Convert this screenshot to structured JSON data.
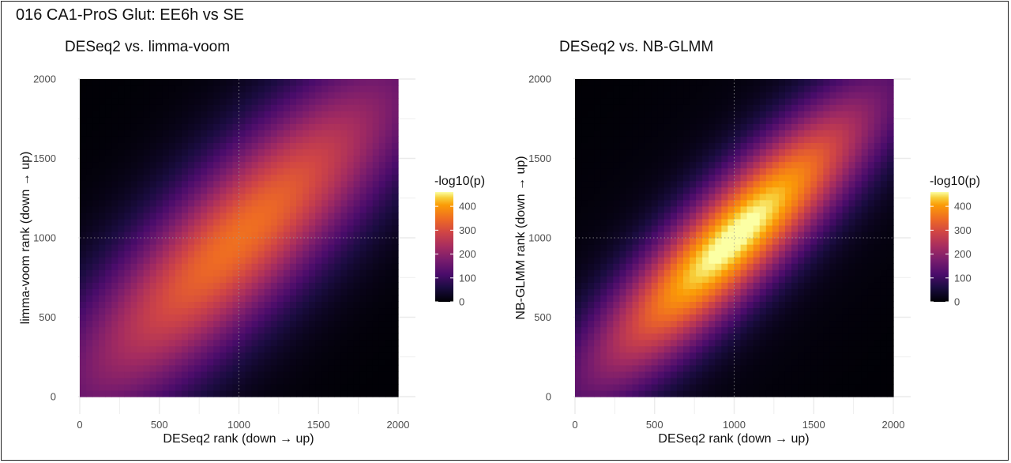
{
  "figure": {
    "title": "016 CA1-ProS Glut: EE6h vs SE"
  },
  "chart_data": [
    {
      "type": "heatmap",
      "title": "DESeq2 vs. limma-voom",
      "xlabel": "DESeq2 rank (down → up)",
      "ylabel": "limma-voom rank (down → up)",
      "xlim": [
        0,
        2000
      ],
      "ylim": [
        0,
        2000
      ],
      "x_ticks": [
        0,
        500,
        1000,
        1500,
        2000
      ],
      "y_ticks": [
        0,
        500,
        1000,
        1500,
        2000
      ],
      "grid": true,
      "reference_lines": {
        "x": 1000,
        "y": 1000,
        "style": "dotted"
      },
      "legend": {
        "title": "-log10(p)",
        "position": "right",
        "ticks": [
          0,
          100,
          200,
          300,
          400
        ],
        "range": [
          0,
          460
        ]
      },
      "colormap": "inferno",
      "density_model": {
        "description": "diagonal ridge",
        "peak_value": 335,
        "peak_rank": 1000,
        "ridge_width_rank": 300,
        "spread_along_diagonal_rank": 750
      }
    },
    {
      "type": "heatmap",
      "title": "DESeq2 vs. NB-GLMM",
      "xlabel": "DESeq2 rank (down → up)",
      "ylabel": "NB-GLMM rank (down → up)",
      "xlim": [
        0,
        2000
      ],
      "ylim": [
        0,
        2000
      ],
      "x_ticks": [
        0,
        500,
        1000,
        1500,
        2000
      ],
      "y_ticks": [
        0,
        500,
        1000,
        1500,
        2000
      ],
      "grid": true,
      "reference_lines": {
        "x": 1000,
        "y": 1000,
        "style": "dotted"
      },
      "legend": {
        "title": "-log10(p)",
        "position": "right",
        "ticks": [
          0,
          100,
          200,
          300,
          400
        ],
        "range": [
          0,
          460
        ]
      },
      "colormap": "inferno",
      "density_model": {
        "description": "diagonal ridge",
        "peak_value": 455,
        "peak_rank": 1000,
        "ridge_width_rank": 215,
        "spread_along_diagonal_rank": 600
      }
    }
  ]
}
